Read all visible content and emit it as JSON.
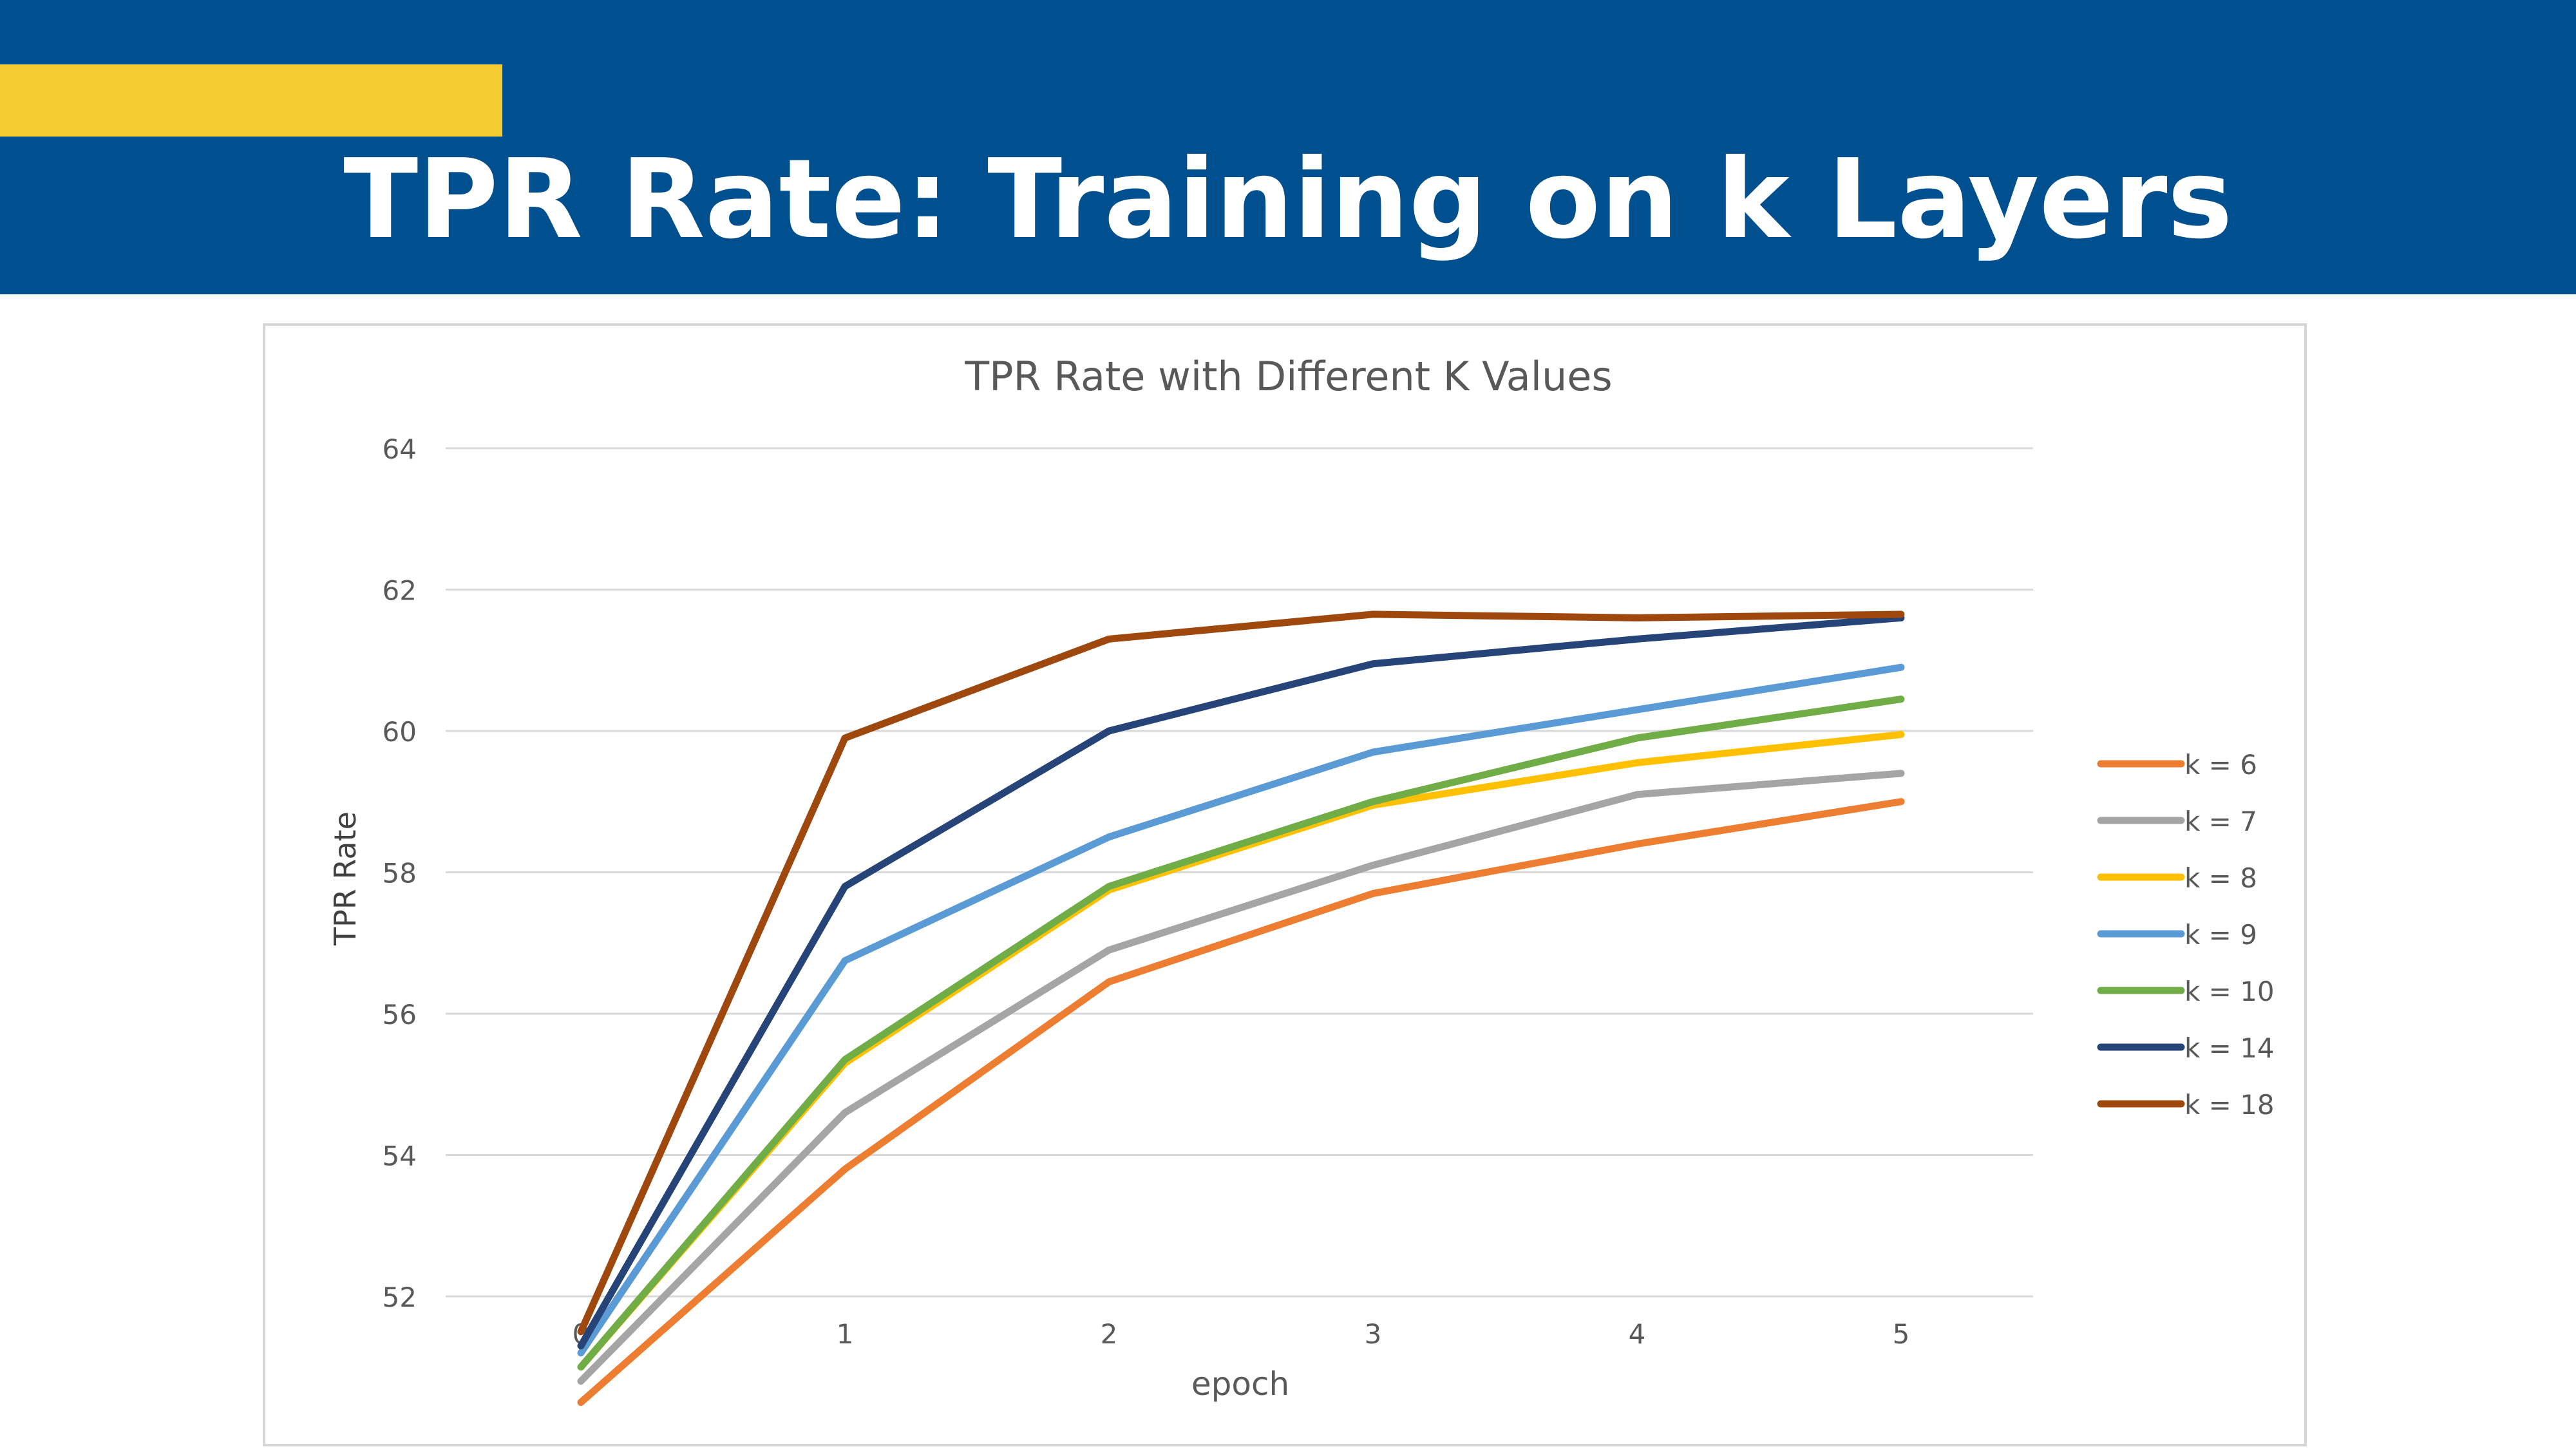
{
  "slide": {
    "title": "TPR Rate: Training on k Layers",
    "header_color": "#004f8f",
    "accent_color": "#f3cd2f"
  },
  "chart_data": {
    "type": "line",
    "title": "TPR Rate with Different K Values",
    "xlabel": "epoch",
    "ylabel": "TPR Rate",
    "x": [
      0,
      1,
      2,
      3,
      4,
      5
    ],
    "ylim": [
      52,
      64
    ],
    "yticks": [
      52,
      54,
      56,
      58,
      60,
      62,
      64
    ],
    "grid": true,
    "legend_position": "right",
    "series": [
      {
        "name": "k = 6",
        "color": "#ed7d31",
        "values": [
          50.5,
          53.8,
          56.45,
          57.7,
          58.4,
          59.0
        ]
      },
      {
        "name": "k = 7",
        "color": "#a5a5a5",
        "values": [
          50.8,
          54.6,
          56.9,
          58.1,
          59.1,
          59.4
        ]
      },
      {
        "name": "k = 8",
        "color": "#ffc000",
        "values": [
          51.0,
          55.3,
          57.75,
          58.95,
          59.55,
          59.95
        ]
      },
      {
        "name": "k = 9",
        "color": "#5b9bd5",
        "values": [
          51.2,
          56.75,
          58.5,
          59.7,
          60.3,
          60.9
        ]
      },
      {
        "name": "k = 10",
        "color": "#70ad47",
        "values": [
          51.0,
          55.35,
          57.8,
          59.0,
          59.9,
          60.45
        ]
      },
      {
        "name": "k = 14",
        "color": "#264478",
        "values": [
          51.3,
          57.8,
          60.0,
          60.95,
          61.3,
          61.6
        ]
      },
      {
        "name": "k = 18",
        "color": "#9e480e",
        "values": [
          51.5,
          59.9,
          61.3,
          61.65,
          61.6,
          61.65
        ]
      }
    ]
  }
}
